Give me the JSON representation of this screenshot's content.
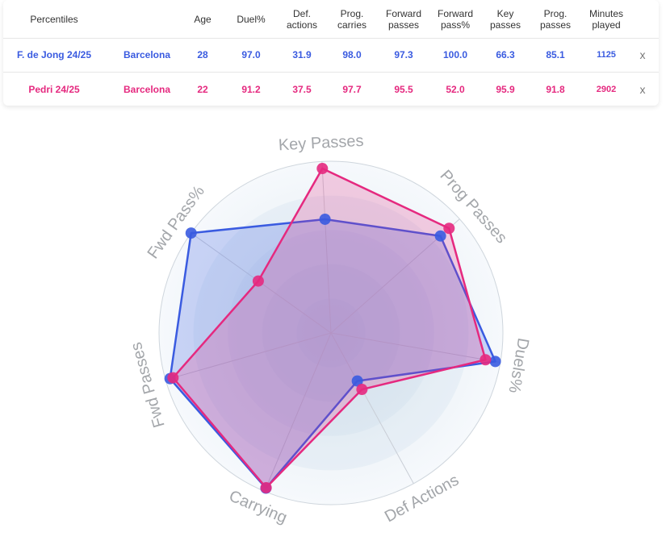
{
  "colors": {
    "fdj": "#3a5be0",
    "pedri": "#e5297f"
  },
  "table": {
    "headers": [
      "Percentiles",
      "",
      "Age",
      "Duel%",
      "Def.\nactions",
      "Prog.\ncarries",
      "Forward\npasses",
      "Forward\npass%",
      "Key\npasses",
      "Prog.\npasses",
      "Minutes\nplayed"
    ],
    "rows": [
      {
        "player": "F. de Jong 24/25",
        "team": "Barcelona",
        "age": "28",
        "duel": "97.0",
        "def_actions": "31.9",
        "prog_carries": "98.0",
        "fwd_passes": "97.3",
        "fwd_pass_pct": "100.0",
        "key_passes": "66.3",
        "prog_passes": "85.1",
        "minutes": "1125",
        "remove": "x"
      },
      {
        "player": "Pedri 24/25",
        "team": "Barcelona",
        "age": "22",
        "duel": "91.2",
        "def_actions": "37.5",
        "prog_carries": "97.7",
        "fwd_passes": "95.5",
        "fwd_pass_pct": "52.0",
        "key_passes": "95.9",
        "prog_passes": "91.8",
        "minutes": "2902",
        "remove": "x"
      }
    ]
  },
  "chart_data": {
    "type": "radar",
    "axes": [
      "Key Passes",
      "Prog Passes",
      "Duels%",
      "Def Actions",
      "Carrying",
      "Fwd Passes",
      "Fwd Pass%"
    ],
    "range": [
      0,
      100
    ],
    "series": [
      {
        "name": "F. de Jong 24/25",
        "color": "#3a5be0",
        "values": [
          66.3,
          85.1,
          97.0,
          31.9,
          98.0,
          97.3,
          100.0
        ]
      },
      {
        "name": "Pedri 24/25",
        "color": "#e5297f",
        "values": [
          95.9,
          91.8,
          91.2,
          37.5,
          97.7,
          95.5,
          52.0
        ]
      }
    ]
  }
}
